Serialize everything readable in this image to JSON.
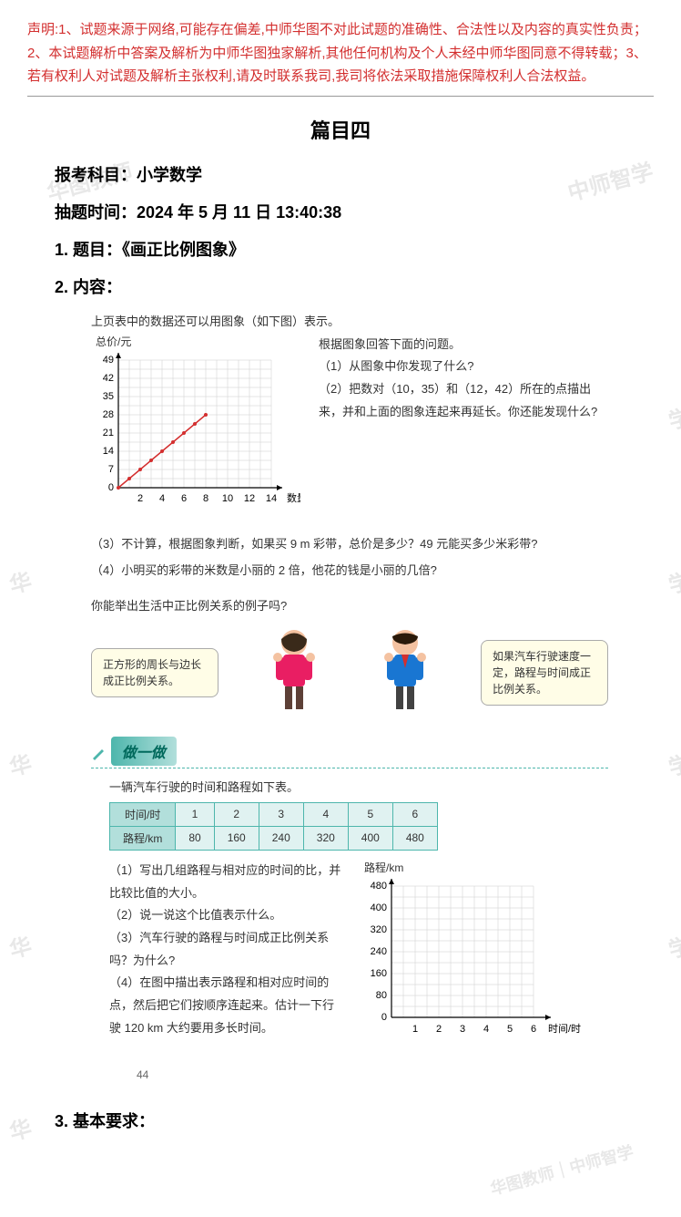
{
  "disclaimer": "声明:1、试题来源于网络,可能存在偏差,中师华图不对此试题的准确性、合法性以及内容的真实性负责；2、本试题解析中答案及解析为中师华图独家解析,其他任何机构及个人未经中师华图同意不得转载；3、若有权利人对试题及解析主张权利,请及时联系我司,我司将依法采取措施保障权利人合法权益。",
  "section_title": "篇目四",
  "subject_label": "报考科目：小学数学",
  "time_label": "抽题时间：2024 年 5 月 11 日 13:40:38",
  "heading1": "1. 题目：《画正比例图象》",
  "heading2": "2. 内容：",
  "heading3": "3. 基本要求：",
  "textbook": {
    "intro": "上页表中的数据还可以用图象（如下图）表示。",
    "chart1": {
      "ylabel": "总价/元",
      "xlabel": "数量/m",
      "yticks": [
        7,
        14,
        21,
        28,
        35,
        42,
        49
      ],
      "xticks": [
        0,
        2,
        4,
        6,
        8,
        10,
        12,
        14
      ],
      "line_color": "#d32f2f",
      "grid_color": "#cccccc",
      "points": [
        [
          0,
          0
        ],
        [
          1,
          3.5
        ],
        [
          2,
          7
        ],
        [
          3,
          10.5
        ],
        [
          4,
          14
        ],
        [
          5,
          17.5
        ],
        [
          6,
          21
        ],
        [
          7,
          24.5
        ],
        [
          8,
          28
        ]
      ]
    },
    "q_right_intro": "根据图象回答下面的问题。",
    "q1": "（1）从图象中你发现了什么?",
    "q2": "（2）把数对（10，35）和（12，42）所在的点描出来，并和上面的图象连起来再延长。你还能发现什么?",
    "q3": "（3）不计算，根据图象判断，如果买 9 m 彩带，总价是多少？49 元能买多少米彩带?",
    "q4": "（4）小明买的彩带的米数是小丽的 2 倍，他花的钱是小丽的几倍?",
    "example_prompt": "你能举出生活中正比例关系的例子吗?",
    "bubble1": "正方形的周长与边长成正比例关系。",
    "bubble2": "如果汽车行驶速度一定，路程与时间成正比例关系。",
    "do_it": "做一做",
    "table_intro": "一辆汽车行驶的时间和路程如下表。",
    "table": {
      "headers": [
        "时间/时",
        "1",
        "2",
        "3",
        "4",
        "5",
        "6"
      ],
      "row2": [
        "路程/km",
        "80",
        "160",
        "240",
        "320",
        "400",
        "480"
      ]
    },
    "ex_q1": "（1）写出几组路程与相对应的时间的比，并比较比值的大小。",
    "ex_q2": "（2）说一说这个比值表示什么。",
    "ex_q3": "（3）汽车行驶的路程与时间成正比例关系吗？为什么?",
    "ex_q4": "（4）在图中描出表示路程和相对应时间的点，然后把它们按顺序连起来。估计一下行驶 120 km 大约要用多长时间。",
    "chart2": {
      "ylabel": "路程/km",
      "xlabel": "时间/时",
      "yticks": [
        80,
        160,
        240,
        320,
        400,
        480
      ],
      "xticks": [
        0,
        1,
        2,
        3,
        4,
        5,
        6
      ],
      "grid_color": "#cccccc"
    },
    "page_num": "44"
  },
  "colors": {
    "disclaimer": "#d32f2f",
    "teal": "#4db6ac",
    "text": "#333333"
  }
}
